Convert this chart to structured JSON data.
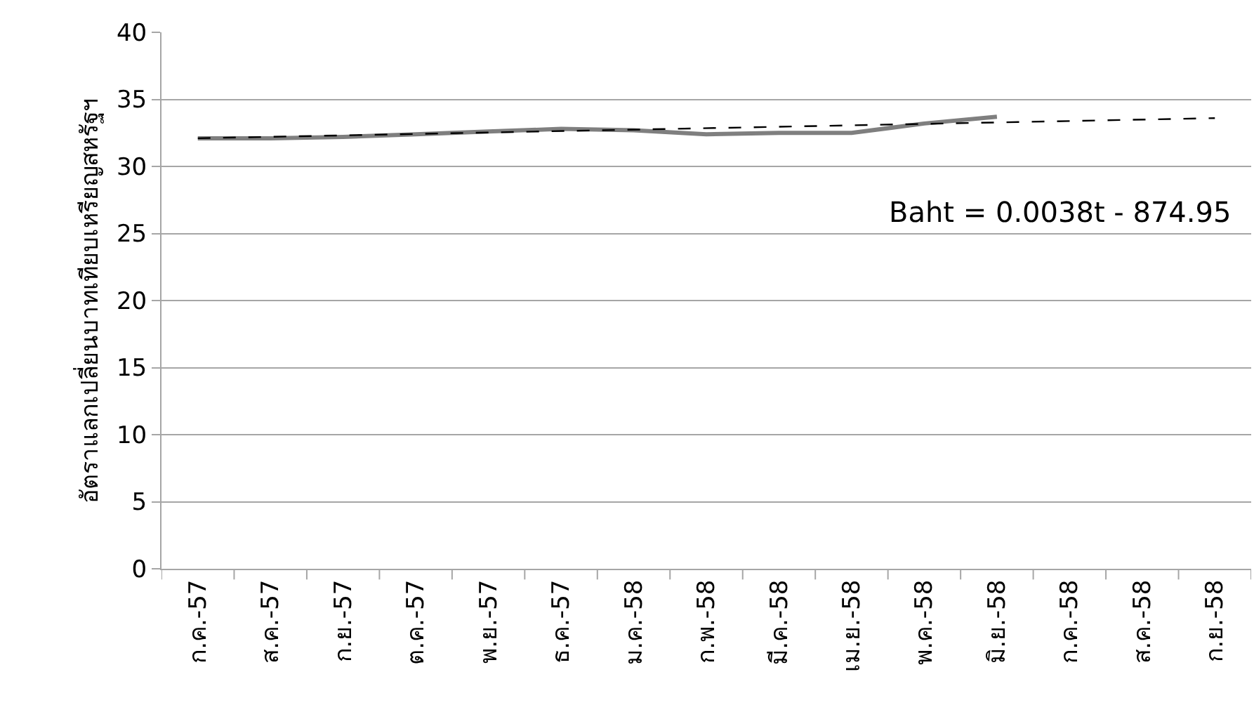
{
  "chart_data": {
    "type": "line",
    "ylabel": "อัตราแลกเปลี่ยนบาทเทียบเหรียญสหรัฐฯ",
    "categories": [
      "ก.ค.-57",
      "ส.ค.-57",
      "ก.ย.-57",
      "ต.ค.-57",
      "พ.ย.-57",
      "ธ.ค.-57",
      "ม.ค.-58",
      "ก.พ.-58",
      "มี.ค.-58",
      "เม.ย.-58",
      "พ.ค.-58",
      "มิ.ย.-58",
      "ก.ค.-58",
      "ส.ค.-58",
      "ก.ย.-58"
    ],
    "series": [
      {
        "color": "#7f7f7f",
        "values": [
          32.1,
          32.1,
          32.2,
          32.4,
          32.6,
          32.8,
          32.7,
          32.4,
          32.5,
          32.5,
          33.2,
          33.7,
          null,
          null,
          null
        ],
        "line_style": "solid"
      },
      {
        "color": "#000000",
        "x": [
          "ก.ค.-57",
          "ก.ย.-58"
        ],
        "values": [
          32.1,
          33.6
        ],
        "line_style": "dashed"
      }
    ],
    "annotations": [
      "Baht = 0.0038t - 874.95"
    ],
    "ylim": [
      0,
      40
    ],
    "yticks": [
      0,
      5,
      10,
      15,
      20,
      25,
      30,
      35,
      40
    ],
    "grid": "y",
    "legend": false,
    "marker": "none"
  }
}
